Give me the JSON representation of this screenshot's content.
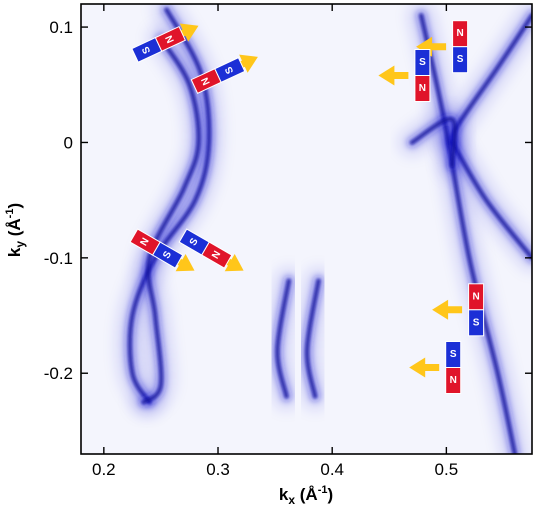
{
  "chart_data": {
    "type": "heatmap",
    "title": "",
    "xlabel": "k",
    "xlabel_sub": "x",
    "xlabel_unit": "(Å",
    "xlabel_exp": "-1",
    "xlabel_close": ")",
    "ylabel": "k",
    "ylabel_sub": "y",
    "ylabel_unit": "(Å",
    "ylabel_exp": "-1",
    "ylabel_close": ")",
    "xlim": [
      0.18,
      0.575
    ],
    "ylim": [
      -0.27,
      0.12
    ],
    "x_ticks": [
      0.2,
      0.3,
      0.4,
      0.5
    ],
    "x_tick_labels": [
      "0.2",
      "0.3",
      "0.4",
      "0.5"
    ],
    "y_ticks": [
      0.1,
      0,
      -0.1,
      -0.2
    ],
    "y_tick_labels": [
      "0.1",
      "0",
      "-0.1",
      "-0.2"
    ],
    "colormap": [
      "#ffffff",
      "#1a1ad0"
    ],
    "features": [
      {
        "name": "outer-arc",
        "points": [
          [
            0.255,
            0.115
          ],
          [
            0.285,
            0.06
          ],
          [
            0.292,
            0.0
          ],
          [
            0.28,
            -0.05
          ],
          [
            0.245,
            -0.1
          ],
          [
            0.225,
            -0.15
          ],
          [
            0.225,
            -0.2
          ],
          [
            0.24,
            -0.225
          ]
        ]
      },
      {
        "name": "inner-arc",
        "points": [
          [
            0.25,
            0.09
          ],
          [
            0.275,
            0.05
          ],
          [
            0.283,
            0.0
          ],
          [
            0.27,
            -0.04
          ],
          [
            0.24,
            -0.1
          ],
          [
            0.245,
            -0.15
          ],
          [
            0.25,
            -0.21
          ],
          [
            0.235,
            -0.225
          ]
        ]
      },
      {
        "name": "middle-left",
        "points": [
          [
            0.362,
            -0.12
          ],
          [
            0.352,
            -0.18
          ],
          [
            0.36,
            -0.22
          ]
        ]
      },
      {
        "name": "middle-right",
        "points": [
          [
            0.388,
            -0.12
          ],
          [
            0.378,
            -0.18
          ],
          [
            0.385,
            -0.22
          ]
        ]
      },
      {
        "name": "right-upper-branch",
        "points": [
          [
            0.575,
            0.11
          ],
          [
            0.545,
            0.065
          ],
          [
            0.51,
            0.015
          ],
          [
            0.505,
            0.0
          ]
        ]
      },
      {
        "name": "right-lower-branch",
        "points": [
          [
            0.505,
            0.0
          ],
          [
            0.535,
            -0.05
          ],
          [
            0.575,
            -0.1
          ]
        ]
      },
      {
        "name": "right-diagonal",
        "points": [
          [
            0.478,
            0.11
          ],
          [
            0.498,
            0.02
          ],
          [
            0.52,
            -0.1
          ],
          [
            0.545,
            -0.2
          ],
          [
            0.56,
            -0.27
          ]
        ]
      },
      {
        "name": "right-v-left",
        "points": [
          [
            0.47,
            0.0
          ],
          [
            0.505,
            0.02
          ],
          [
            0.505,
            -0.02
          ]
        ]
      }
    ],
    "magnets": [
      {
        "id": "mag-1",
        "x": 0.248,
        "y": 0.085,
        "angle": -25,
        "left": "S",
        "right": "N",
        "arrow_angle": -25
      },
      {
        "id": "mag-2",
        "x": 0.3,
        "y": 0.058,
        "angle": -25,
        "left": "N",
        "right": "S",
        "arrow_angle": -25
      },
      {
        "id": "mag-3",
        "x": 0.246,
        "y": -0.092,
        "angle": 30,
        "left": "N",
        "right": "S",
        "arrow_angle": 30
      },
      {
        "id": "mag-4",
        "x": 0.289,
        "y": -0.092,
        "angle": 30,
        "left": "S",
        "right": "N",
        "arrow_angle": 30
      },
      {
        "id": "mag-5",
        "x": 0.512,
        "y": 0.083,
        "angle": 90,
        "left": "N",
        "right": "S",
        "arrow_angle": 180
      },
      {
        "id": "mag-6",
        "x": 0.479,
        "y": 0.058,
        "angle": -90,
        "left": "N",
        "right": "S",
        "arrow_angle": 180
      },
      {
        "id": "mag-7",
        "x": 0.526,
        "y": -0.145,
        "angle": 90,
        "left": "N",
        "right": "S",
        "arrow_angle": 180
      },
      {
        "id": "mag-8",
        "x": 0.506,
        "y": -0.195,
        "angle": -90,
        "left": "N",
        "right": "S",
        "arrow_angle": 180
      }
    ],
    "magnet_colors": {
      "north": "#e0142a",
      "south": "#1b2fd6",
      "arrow": "#ffc61a"
    }
  }
}
